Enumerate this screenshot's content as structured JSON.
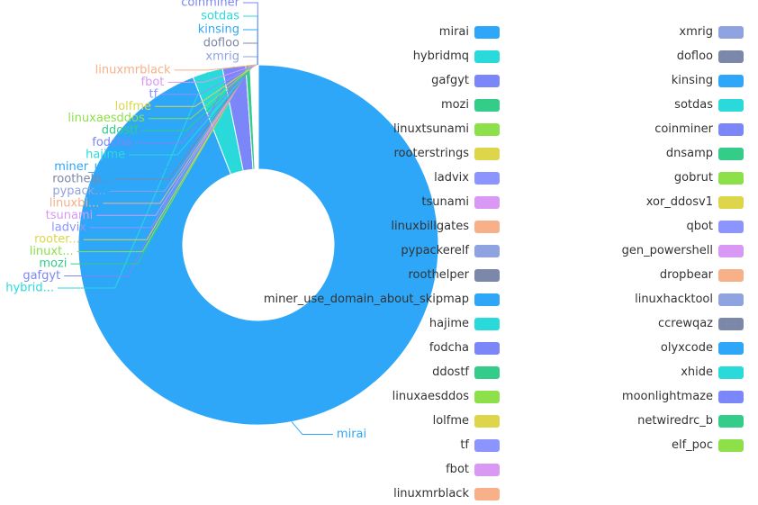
{
  "chart_data": {
    "type": "pie",
    "style": "donut",
    "legend_position": "right",
    "palette": [
      "#2ea7f8",
      "#2adada",
      "#7b86f9",
      "#33cc88",
      "#8ee04a",
      "#ddd64b",
      "#8c94ff",
      "#da98f5",
      "#f7b088",
      "#8fa3e0",
      "#7c88aa"
    ],
    "slices": [
      {
        "name": "mirai",
        "value": 1180,
        "short": "mirai"
      },
      {
        "name": "hybridmq",
        "value": 34,
        "short": "hybrid..."
      },
      {
        "name": "gafgyt",
        "value": 26,
        "short": "gafgyt"
      },
      {
        "name": "mozi",
        "value": 5,
        "short": "mozi"
      },
      {
        "name": "linuxtsunami",
        "value": 0.5,
        "short": "linuxt..."
      },
      {
        "name": "rooterstrings",
        "value": 0.5,
        "short": "rooter..."
      },
      {
        "name": "ladvix",
        "value": 0.5,
        "short": "ladvix"
      },
      {
        "name": "tsunami",
        "value": 0.5,
        "short": "tsunami"
      },
      {
        "name": "linuxbillgates",
        "value": 0.5,
        "short": "linuxbi..."
      },
      {
        "name": "pypackerelf",
        "value": 0.5,
        "short": "pypack..."
      },
      {
        "name": "roothelper",
        "value": 0.5,
        "short": "roothelp..."
      },
      {
        "name": "miner_use_domain_about_skipmap",
        "value": 0.5,
        "short": "miner_us..."
      },
      {
        "name": "hajime",
        "value": 0.5,
        "short": "hajime"
      },
      {
        "name": "fodcha",
        "value": 0.5,
        "short": "fodcha"
      },
      {
        "name": "ddostf",
        "value": 0.5,
        "short": "ddostf"
      },
      {
        "name": "linuxaesddos",
        "value": 0.5,
        "short": "linuxaesddos"
      },
      {
        "name": "lolfme",
        "value": 0.5,
        "short": "lolfme"
      },
      {
        "name": "tf",
        "value": 0.5,
        "short": "tf"
      },
      {
        "name": "fbot",
        "value": 0.5,
        "short": "fbot"
      },
      {
        "name": "linuxmrblack",
        "value": 0.5,
        "short": "linuxmrblack"
      },
      {
        "name": "xmrig",
        "value": 0.1,
        "short": "xmrig"
      },
      {
        "name": "dofloo",
        "value": 0.1,
        "short": "dofloo"
      },
      {
        "name": "kinsing",
        "value": 0.1,
        "short": "kinsing"
      },
      {
        "name": "sotdas",
        "value": 0.1,
        "short": "sotdas"
      },
      {
        "name": "coinminer",
        "value": 0.1,
        "short": "coinminer"
      },
      {
        "name": "dnsamp",
        "value": 0.05,
        "short": "dnsamp"
      },
      {
        "name": "gobrut",
        "value": 0.05,
        "short": "gobrut"
      },
      {
        "name": "xor_ddosv1",
        "value": 0.05,
        "short": "xor_ddosv1"
      },
      {
        "name": "qbot",
        "value": 0.05,
        "short": "qbot"
      },
      {
        "name": "gen_powershell",
        "value": 0.05,
        "short": "gen_powershell"
      },
      {
        "name": "dropbear",
        "value": 0.05,
        "short": "dropbear"
      },
      {
        "name": "linuxhacktool",
        "value": 0.05,
        "short": "linuxhacktool"
      },
      {
        "name": "ccrewqaz",
        "value": 0.05,
        "short": "ccrewqaz"
      },
      {
        "name": "olyxcode",
        "value": 0.05,
        "short": "olyxcode"
      },
      {
        "name": "xhide",
        "value": 0.05,
        "short": "xhide"
      },
      {
        "name": "moonlightmaze",
        "value": 0.05,
        "short": "moonlightmaze"
      },
      {
        "name": "netwiredrc_b",
        "value": 0.05,
        "short": "netwiredrc_b"
      },
      {
        "name": "elf_poc",
        "value": 0.05,
        "short": "elf_poc"
      }
    ]
  }
}
